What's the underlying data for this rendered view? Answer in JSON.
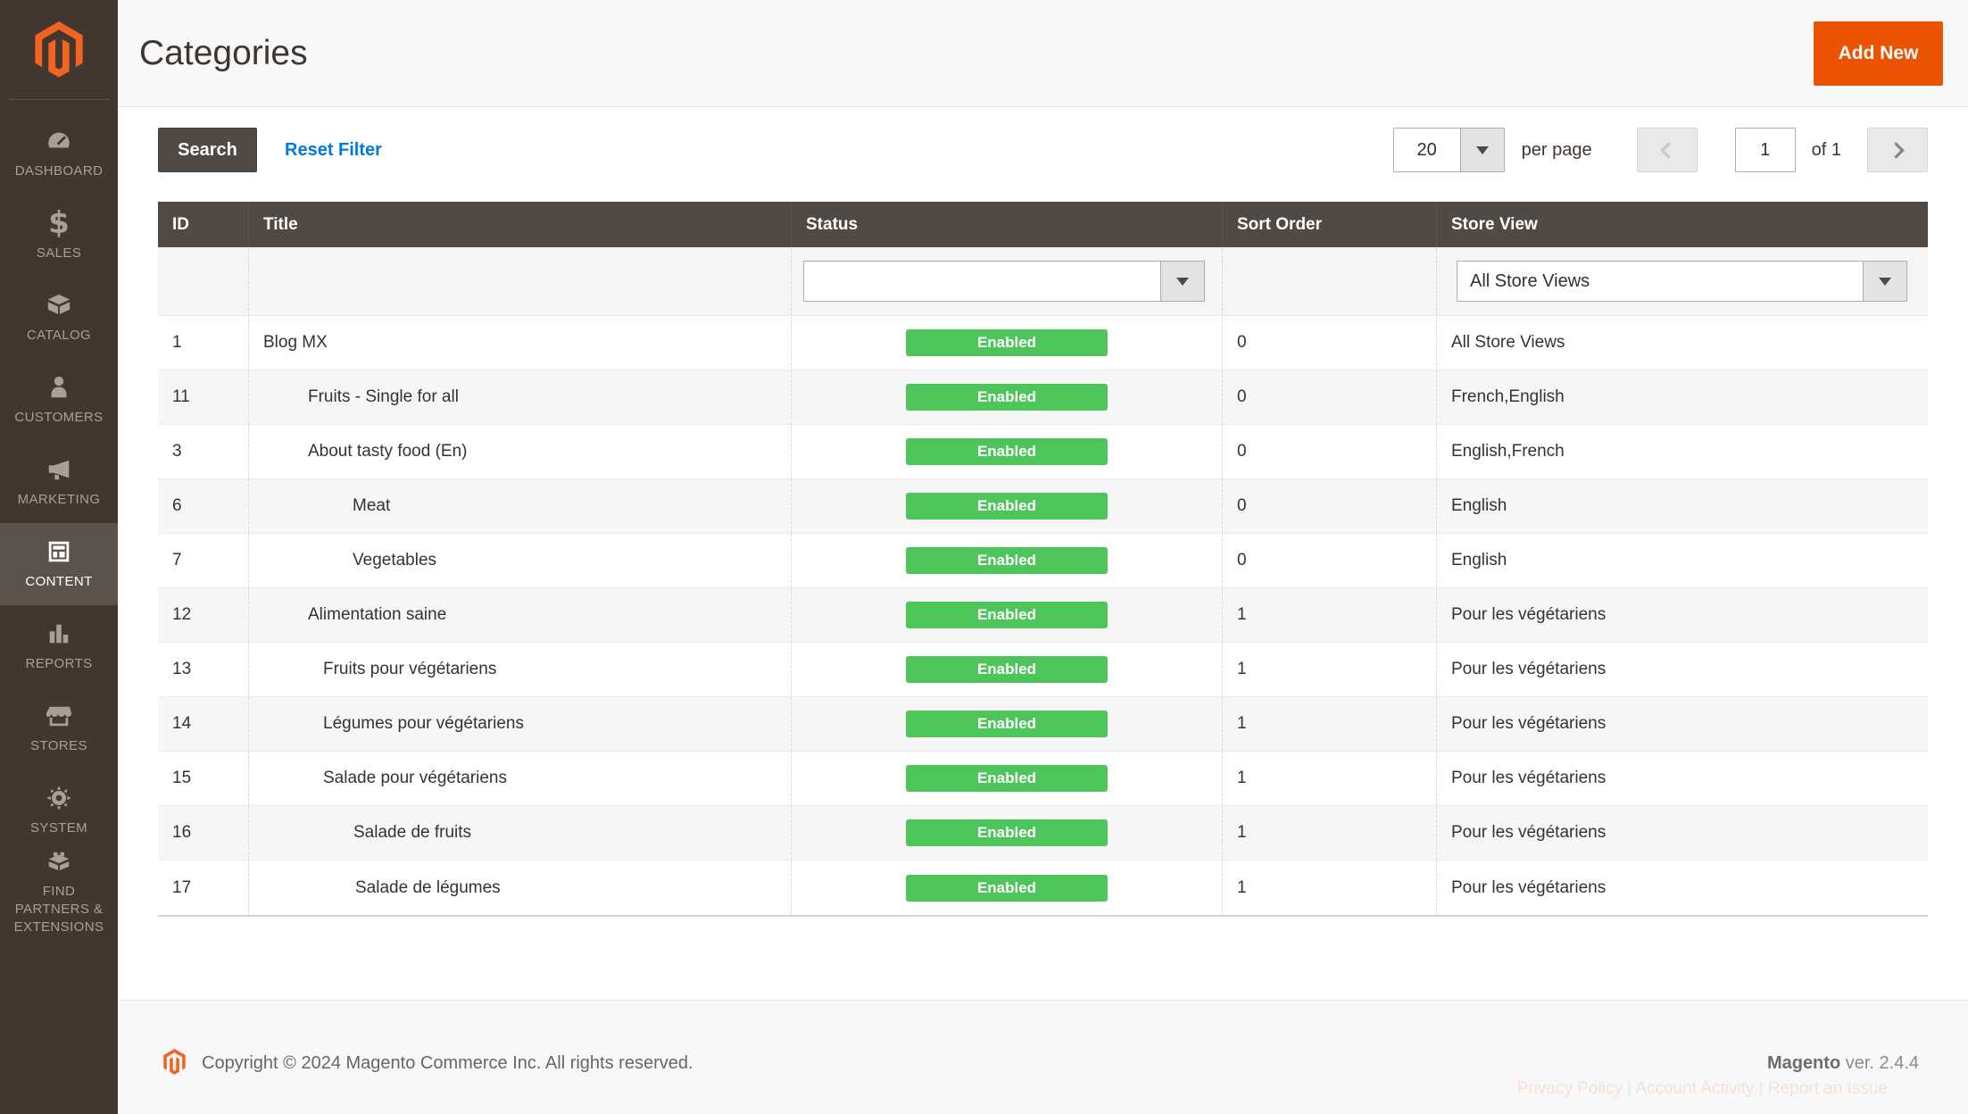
{
  "colors": {
    "accent": "#eb5202",
    "logo_orange": "#f26322",
    "link_blue": "#007bdb",
    "status_green": "#4ec55a",
    "menu_bg": "#41372f",
    "menu_active_bg": "#5b534b",
    "table_header_bg": "#514943"
  },
  "sidebar": {
    "logo_name": "magento-logo",
    "items": [
      {
        "label": "DASHBOARD",
        "icon": "dashboard",
        "active": false
      },
      {
        "label": "SALES",
        "icon": "sales",
        "active": false
      },
      {
        "label": "CATALOG",
        "icon": "catalog",
        "active": false
      },
      {
        "label": "CUSTOMERS",
        "icon": "customers",
        "active": false
      },
      {
        "label": "MARKETING",
        "icon": "marketing",
        "active": false
      },
      {
        "label": "CONTENT",
        "icon": "content",
        "active": true
      },
      {
        "label": "REPORTS",
        "icon": "reports",
        "active": false
      },
      {
        "label": "STORES",
        "icon": "stores",
        "active": false
      },
      {
        "label": "SYSTEM",
        "icon": "system",
        "active": false
      },
      {
        "label": "FIND PARTNERS & EXTENSIONS",
        "icon": "find-partners",
        "active": false
      }
    ]
  },
  "header": {
    "title": "Categories",
    "add_new_label": "Add New"
  },
  "toolbar": {
    "search_label": "Search",
    "reset_label": "Reset Filter",
    "per_page_value": "20",
    "per_page_label": "per page",
    "page_value": "1",
    "page_total_label": "of 1"
  },
  "table": {
    "columns": [
      "ID",
      "Title",
      "Status",
      "Sort Order",
      "Store View"
    ],
    "filters": {
      "status_value": "",
      "store_view_value": "All Store Views"
    },
    "rows": [
      {
        "id": "1",
        "title": "Blog MX",
        "indent": 0,
        "status": "Enabled",
        "sort_order": "0",
        "store_view": "All Store Views"
      },
      {
        "id": "11",
        "title": "Fruits - Single for all",
        "indent": 50,
        "status": "Enabled",
        "sort_order": "0",
        "store_view": "French,English"
      },
      {
        "id": "3",
        "title": "About tasty food (En)",
        "indent": 50,
        "status": "Enabled",
        "sort_order": "0",
        "store_view": "English,French"
      },
      {
        "id": "6",
        "title": "Meat",
        "indent": 100,
        "status": "Enabled",
        "sort_order": "0",
        "store_view": "English"
      },
      {
        "id": "7",
        "title": "Vegetables",
        "indent": 100,
        "status": "Enabled",
        "sort_order": "0",
        "store_view": "English"
      },
      {
        "id": "12",
        "title": "Alimentation saine",
        "indent": 50,
        "status": "Enabled",
        "sort_order": "1",
        "store_view": "Pour les végétariens"
      },
      {
        "id": "13",
        "title": "Fruits pour végétariens",
        "indent": 67,
        "status": "Enabled",
        "sort_order": "1",
        "store_view": "Pour les végétariens"
      },
      {
        "id": "14",
        "title": "Légumes pour végétariens",
        "indent": 67,
        "status": "Enabled",
        "sort_order": "1",
        "store_view": "Pour les végétariens"
      },
      {
        "id": "15",
        "title": "Salade pour végétariens",
        "indent": 67,
        "status": "Enabled",
        "sort_order": "1",
        "store_view": "Pour les végétariens"
      },
      {
        "id": "16",
        "title": "Salade de fruits",
        "indent": 101,
        "status": "Enabled",
        "sort_order": "1",
        "store_view": "Pour les végétariens"
      },
      {
        "id": "17",
        "title": "Salade de légumes",
        "indent": 103,
        "status": "Enabled",
        "sort_order": "1",
        "store_view": "Pour les végétariens"
      }
    ]
  },
  "footer": {
    "copyright": "Copyright © 2024 Magento Commerce Inc. All rights reserved.",
    "brand": "Magento",
    "version": "ver. 2.4.4",
    "links": [
      "Privacy Policy",
      "Account Activity",
      "Report an Issue"
    ]
  }
}
